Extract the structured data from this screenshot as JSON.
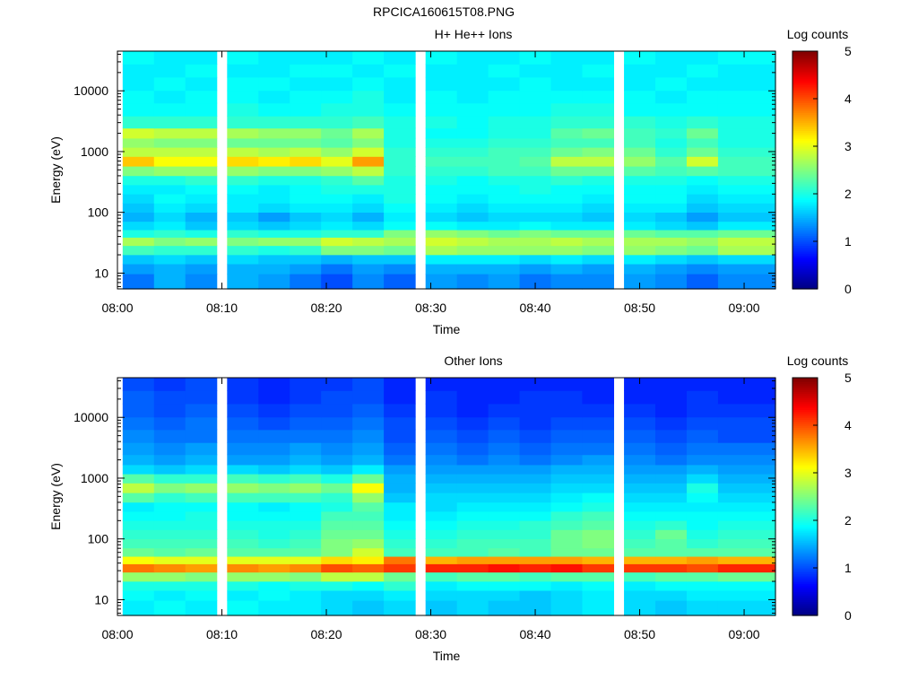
{
  "title": "RPCICA160615T08.PNG",
  "chart_data": [
    {
      "type": "heatmap",
      "title": "H+ He++ Ions",
      "xlabel": "Time",
      "ylabel": "Energy (eV)",
      "colorbar_label": "Log counts",
      "y_scale": "log",
      "x_range": [
        "08:00",
        "09:03"
      ],
      "y_range": [
        5.5,
        45000
      ],
      "x_ticks": [
        "08:00",
        "08:10",
        "08:20",
        "08:30",
        "08:40",
        "08:50",
        "09:00"
      ],
      "y_ticks": [
        "10",
        "100",
        "1000",
        "10000"
      ],
      "colorbar_range": [
        0,
        5
      ],
      "colorbar_ticks": [
        "0",
        "1",
        "2",
        "3",
        "4",
        "5"
      ],
      "time_bins": [
        "08:02",
        "08:05",
        "08:08",
        "08:12",
        "08:15",
        "08:18",
        "08:21",
        "08:24",
        "08:27",
        "08:31",
        "08:34",
        "08:37",
        "08:40",
        "08:43",
        "08:46",
        "08:50",
        "08:53",
        "08:56",
        "08:59"
      ],
      "energy_bins": [
        8,
        12,
        17,
        24,
        34,
        45,
        60,
        85,
        120,
        170,
        240,
        340,
        480,
        700,
        1000,
        1400,
        2000,
        3000,
        5000,
        8000,
        13000,
        22000,
        35000
      ],
      "values": [
        [
          1.2,
          1.5,
          1.3,
          1.5,
          1.4,
          1.2,
          1.0,
          1.3,
          1.1,
          1.4,
          1.3,
          1.4,
          1.2,
          1.3,
          1.3,
          1.4,
          1.3,
          1.1,
          1.3
        ],
        [
          1.4,
          1.5,
          1.4,
          1.5,
          1.5,
          1.4,
          1.2,
          1.4,
          1.3,
          1.5,
          1.5,
          1.5,
          1.4,
          1.5,
          1.4,
          1.5,
          1.4,
          1.3,
          1.4
        ],
        [
          1.6,
          1.7,
          1.6,
          1.7,
          1.6,
          1.6,
          1.5,
          1.6,
          1.6,
          1.8,
          1.8,
          1.8,
          1.7,
          1.8,
          1.7,
          1.8,
          1.7,
          1.6,
          1.7
        ],
        [
          2.2,
          2.1,
          2.1,
          2.1,
          2.0,
          2.1,
          2.5,
          2.5,
          2.4,
          2.7,
          2.6,
          2.6,
          2.6,
          2.6,
          2.5,
          2.6,
          2.5,
          2.4,
          2.7
        ],
        [
          2.7,
          2.5,
          2.6,
          2.5,
          2.6,
          2.6,
          2.9,
          2.8,
          2.7,
          2.9,
          2.8,
          2.7,
          2.7,
          2.8,
          2.7,
          2.7,
          2.7,
          2.6,
          2.8
        ],
        [
          2.0,
          2.1,
          2.0,
          2.1,
          2.0,
          2.0,
          2.1,
          2.1,
          2.5,
          2.6,
          2.5,
          2.4,
          2.5,
          2.4,
          2.4,
          2.4,
          2.3,
          2.3,
          2.4
        ],
        [
          1.7,
          1.8,
          1.6,
          1.7,
          1.6,
          1.7,
          1.8,
          1.7,
          1.9,
          1.9,
          1.8,
          1.8,
          1.9,
          1.8,
          1.8,
          1.8,
          1.7,
          1.6,
          1.8
        ],
        [
          1.5,
          1.7,
          1.5,
          1.6,
          1.4,
          1.6,
          1.7,
          1.5,
          1.8,
          1.7,
          1.6,
          1.7,
          1.7,
          1.7,
          1.6,
          1.7,
          1.6,
          1.4,
          1.6
        ],
        [
          1.6,
          1.8,
          1.7,
          1.8,
          1.7,
          1.8,
          1.8,
          1.7,
          1.9,
          1.8,
          1.7,
          1.8,
          1.8,
          1.8,
          1.7,
          1.8,
          1.8,
          1.6,
          1.7
        ],
        [
          1.7,
          1.9,
          1.8,
          1.8,
          1.8,
          1.9,
          1.9,
          1.8,
          2.0,
          1.9,
          1.8,
          1.9,
          1.9,
          1.9,
          1.8,
          1.9,
          1.9,
          1.7,
          1.8
        ],
        [
          1.8,
          1.8,
          1.9,
          1.9,
          1.8,
          1.9,
          2.0,
          2.0,
          2.0,
          1.9,
          1.9,
          1.9,
          2.0,
          1.9,
          1.9,
          1.9,
          1.9,
          1.8,
          1.9
        ],
        [
          2.0,
          2.0,
          2.1,
          2.1,
          2.0,
          2.0,
          2.1,
          2.3,
          2.0,
          2.0,
          1.9,
          2.0,
          2.0,
          2.1,
          2.0,
          2.0,
          2.0,
          1.9,
          2.0
        ],
        [
          2.5,
          2.6,
          2.6,
          2.6,
          2.5,
          2.5,
          2.6,
          2.8,
          2.1,
          2.1,
          2.1,
          2.2,
          2.2,
          2.4,
          2.4,
          2.3,
          2.2,
          2.3,
          2.2
        ],
        [
          3.4,
          3.1,
          3.1,
          3.3,
          3.2,
          3.3,
          3.0,
          3.6,
          2.1,
          2.2,
          2.2,
          2.2,
          2.3,
          2.8,
          2.8,
          2.6,
          2.3,
          2.9,
          2.2
        ],
        [
          2.8,
          2.8,
          2.8,
          2.8,
          2.7,
          2.8,
          2.6,
          2.9,
          2.1,
          2.1,
          2.1,
          2.2,
          2.2,
          2.4,
          2.5,
          2.4,
          2.1,
          2.4,
          2.1
        ],
        [
          2.6,
          2.5,
          2.5,
          2.4,
          2.4,
          2.4,
          2.3,
          2.5,
          2.0,
          2.0,
          2.0,
          2.1,
          2.1,
          2.2,
          2.2,
          2.2,
          2.0,
          2.2,
          2.0
        ],
        [
          2.9,
          2.8,
          2.8,
          2.7,
          2.6,
          2.6,
          2.4,
          2.7,
          2.0,
          1.9,
          1.9,
          2.0,
          2.0,
          2.3,
          2.4,
          2.2,
          2.1,
          2.4,
          2.0
        ],
        [
          2.1,
          2.1,
          2.1,
          2.1,
          2.1,
          2.1,
          2.1,
          2.2,
          2.0,
          2.0,
          1.9,
          2.0,
          2.0,
          2.1,
          2.1,
          2.1,
          2.0,
          2.1,
          2.0
        ],
        [
          1.9,
          1.9,
          1.9,
          2.0,
          1.9,
          1.9,
          2.0,
          2.0,
          1.9,
          1.9,
          1.9,
          1.9,
          1.9,
          2.0,
          2.0,
          1.9,
          1.9,
          1.9,
          1.9
        ],
        [
          1.9,
          1.8,
          1.9,
          1.9,
          1.8,
          1.9,
          1.9,
          2.0,
          1.8,
          1.9,
          1.8,
          1.9,
          1.9,
          1.9,
          1.9,
          1.9,
          1.8,
          1.9,
          1.9
        ],
        [
          1.8,
          1.9,
          1.8,
          1.9,
          1.9,
          1.8,
          1.8,
          1.9,
          1.8,
          1.8,
          1.8,
          1.8,
          1.9,
          1.8,
          1.8,
          1.8,
          1.9,
          1.8,
          1.8
        ],
        [
          1.8,
          1.8,
          1.9,
          1.8,
          1.8,
          1.9,
          1.9,
          1.8,
          1.9,
          1.8,
          1.8,
          1.9,
          1.8,
          1.8,
          1.9,
          1.8,
          1.8,
          1.9,
          1.8
        ],
        [
          1.9,
          1.8,
          1.8,
          1.9,
          1.8,
          1.8,
          1.8,
          1.9,
          1.8,
          1.9,
          1.8,
          1.8,
          1.9,
          1.8,
          1.8,
          1.9,
          1.8,
          1.8,
          1.9
        ]
      ]
    },
    {
      "type": "heatmap",
      "title": "Other Ions",
      "xlabel": "Time",
      "ylabel": "Energy (eV)",
      "colorbar_label": "Log counts",
      "y_scale": "log",
      "x_range": [
        "08:00",
        "09:03"
      ],
      "y_range": [
        5.5,
        45000
      ],
      "x_ticks": [
        "08:00",
        "08:10",
        "08:20",
        "08:30",
        "08:40",
        "08:50",
        "09:00"
      ],
      "y_ticks": [
        "10",
        "100",
        "1000",
        "10000"
      ],
      "colorbar_range": [
        0,
        5
      ],
      "colorbar_ticks": [
        "0",
        "1",
        "2",
        "3",
        "4",
        "5"
      ],
      "time_bins": [
        "08:02",
        "08:05",
        "08:08",
        "08:12",
        "08:15",
        "08:18",
        "08:21",
        "08:24",
        "08:27",
        "08:31",
        "08:34",
        "08:37",
        "08:40",
        "08:43",
        "08:46",
        "08:50",
        "08:53",
        "08:56",
        "08:59"
      ],
      "energy_bins": [
        8,
        12,
        17,
        24,
        34,
        45,
        60,
        85,
        120,
        170,
        240,
        340,
        480,
        700,
        1000,
        1400,
        2000,
        3000,
        5000,
        8000,
        13000,
        22000,
        35000
      ],
      "values": [
        [
          1.8,
          1.9,
          1.8,
          1.9,
          1.8,
          1.8,
          1.7,
          1.6,
          1.7,
          1.6,
          1.7,
          1.6,
          1.6,
          1.7,
          1.8,
          1.7,
          1.6,
          1.7,
          1.7
        ],
        [
          1.9,
          1.8,
          1.9,
          1.8,
          1.9,
          1.8,
          1.7,
          1.7,
          1.8,
          1.7,
          1.7,
          1.7,
          1.6,
          1.7,
          1.8,
          1.7,
          1.7,
          1.8,
          1.8
        ],
        [
          2.0,
          2.0,
          2.0,
          2.0,
          1.9,
          2.0,
          2.0,
          1.9,
          2.1,
          1.8,
          1.9,
          1.9,
          1.9,
          1.8,
          1.9,
          1.8,
          1.9,
          1.9,
          1.9
        ],
        [
          2.6,
          2.6,
          2.5,
          2.6,
          2.6,
          2.5,
          2.8,
          2.8,
          2.4,
          2.2,
          2.3,
          2.3,
          2.2,
          2.3,
          2.3,
          2.2,
          2.3,
          2.3,
          2.4
        ],
        [
          3.8,
          3.7,
          3.6,
          3.7,
          3.6,
          3.7,
          4.0,
          3.9,
          4.1,
          4.2,
          4.2,
          4.3,
          4.2,
          4.3,
          4.1,
          4.1,
          4.1,
          4.0,
          4.2
        ],
        [
          3.1,
          3.0,
          3.0,
          3.0,
          3.0,
          3.0,
          3.3,
          3.2,
          3.8,
          3.5,
          3.6,
          3.6,
          3.6,
          3.6,
          3.5,
          3.5,
          3.5,
          3.6,
          3.5
        ],
        [
          2.4,
          2.3,
          2.4,
          2.3,
          2.3,
          2.3,
          2.5,
          2.9,
          2.2,
          2.2,
          2.2,
          2.3,
          2.2,
          2.4,
          2.4,
          2.3,
          2.3,
          2.3,
          2.3
        ],
        [
          2.2,
          2.2,
          2.2,
          2.2,
          2.1,
          2.2,
          2.5,
          2.6,
          2.1,
          2.1,
          2.2,
          2.2,
          2.2,
          2.4,
          2.5,
          2.2,
          2.3,
          2.1,
          2.2
        ],
        [
          2.1,
          2.1,
          2.1,
          2.1,
          2.0,
          2.1,
          2.4,
          2.4,
          2.0,
          2.0,
          2.1,
          2.1,
          2.1,
          2.4,
          2.5,
          2.1,
          2.4,
          2.0,
          2.1
        ],
        [
          2.0,
          2.0,
          2.0,
          2.0,
          2.0,
          2.0,
          2.3,
          2.3,
          1.9,
          1.9,
          2.0,
          2.0,
          2.1,
          2.2,
          2.3,
          2.0,
          2.1,
          1.9,
          2.0
        ],
        [
          1.9,
          1.9,
          2.0,
          1.9,
          1.9,
          1.9,
          2.2,
          2.2,
          1.8,
          1.8,
          1.9,
          1.9,
          1.9,
          2.1,
          2.2,
          1.9,
          1.9,
          1.9,
          1.9
        ],
        [
          1.8,
          1.9,
          1.9,
          1.9,
          1.8,
          1.9,
          2.0,
          2.3,
          1.8,
          1.7,
          1.8,
          1.8,
          1.8,
          1.9,
          2.0,
          1.8,
          1.8,
          1.8,
          1.8
        ],
        [
          2.3,
          2.1,
          2.2,
          2.2,
          2.2,
          2.2,
          2.1,
          2.6,
          1.6,
          1.7,
          1.7,
          1.7,
          1.7,
          1.8,
          1.9,
          1.7,
          1.7,
          1.9,
          1.7
        ],
        [
          2.8,
          2.5,
          2.6,
          2.6,
          2.5,
          2.6,
          2.4,
          3.1,
          1.5,
          1.6,
          1.6,
          1.6,
          1.6,
          1.7,
          1.7,
          1.6,
          1.6,
          2.0,
          1.6
        ],
        [
          2.3,
          2.1,
          2.1,
          2.2,
          2.1,
          2.2,
          2.0,
          2.4,
          1.5,
          1.5,
          1.5,
          1.5,
          1.5,
          1.6,
          1.6,
          1.5,
          1.5,
          1.7,
          1.5
        ],
        [
          1.7,
          1.6,
          1.7,
          1.7,
          1.6,
          1.7,
          1.6,
          1.8,
          1.4,
          1.4,
          1.4,
          1.4,
          1.4,
          1.5,
          1.5,
          1.4,
          1.4,
          1.5,
          1.4
        ],
        [
          1.5,
          1.4,
          1.5,
          1.4,
          1.4,
          1.5,
          1.4,
          1.5,
          1.2,
          1.3,
          1.2,
          1.3,
          1.2,
          1.3,
          1.4,
          1.3,
          1.2,
          1.3,
          1.3
        ],
        [
          1.4,
          1.3,
          1.4,
          1.3,
          1.3,
          1.4,
          1.3,
          1.4,
          1.1,
          1.2,
          1.1,
          1.2,
          1.1,
          1.2,
          1.2,
          1.2,
          1.1,
          1.2,
          1.2
        ],
        [
          1.3,
          1.2,
          1.2,
          1.2,
          1.2,
          1.2,
          1.2,
          1.3,
          1.0,
          1.1,
          1.0,
          1.1,
          1.0,
          1.1,
          1.1,
          1.1,
          1.0,
          1.1,
          1.0
        ],
        [
          1.2,
          1.1,
          1.2,
          1.1,
          1.0,
          1.1,
          1.1,
          1.2,
          1.0,
          1.0,
          0.9,
          1.0,
          0.9,
          1.0,
          1.0,
          1.0,
          0.9,
          1.0,
          1.0
        ],
        [
          1.1,
          1.0,
          1.1,
          1.0,
          0.9,
          1.0,
          1.0,
          1.1,
          0.9,
          0.9,
          0.8,
          0.9,
          0.9,
          0.9,
          0.9,
          0.9,
          0.8,
          0.9,
          0.9
        ],
        [
          1.1,
          1.0,
          1.0,
          0.9,
          0.8,
          0.9,
          1.0,
          1.0,
          0.8,
          0.9,
          0.8,
          0.8,
          0.9,
          0.9,
          0.8,
          0.8,
          0.8,
          0.9,
          0.8
        ],
        [
          1.0,
          0.9,
          1.0,
          0.9,
          0.8,
          0.9,
          0.9,
          1.0,
          0.8,
          0.8,
          0.8,
          0.8,
          0.8,
          0.8,
          0.8,
          0.8,
          0.8,
          0.8,
          0.8
        ]
      ]
    }
  ]
}
